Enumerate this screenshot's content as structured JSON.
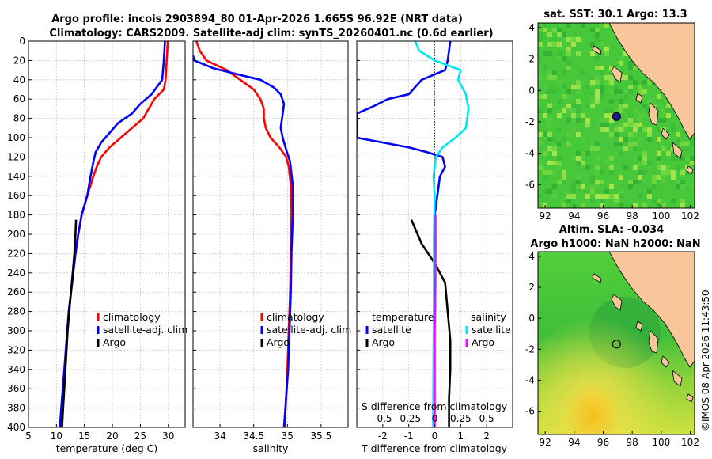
{
  "title_line1": "Argo profile: incois 2903894_80 01-Apr-2026 1.665S 96.92E (NRT data)",
  "title_line2": "Climatology: CARS2009. Satellite-adj clim: synTS_20260401.nc (0.6d earlier)",
  "watermark": "©IMOS 08-Apr-2026 11:43:50",
  "colors": {
    "climatology": "#ff0000",
    "satellite": "#0000ff",
    "argo": "#000000",
    "sal_sat": "#00e5ee",
    "sal_argo": "#ff00ff",
    "land": "#f9c59b"
  },
  "chart_data": [
    {
      "type": "line",
      "id": "temperature",
      "xlabel": "temperature (deg C)",
      "xlim": [
        5,
        33
      ],
      "ylim": [
        400,
        0
      ],
      "xticks": [
        5,
        10,
        15,
        20,
        25,
        30
      ],
      "yticks": [
        0,
        20,
        40,
        60,
        80,
        100,
        120,
        140,
        160,
        180,
        200,
        220,
        240,
        260,
        280,
        300,
        320,
        340,
        360,
        380,
        400
      ],
      "grid": true,
      "legend": [
        "climatology",
        "satellite-adj. clim",
        "Argo"
      ],
      "series": [
        {
          "name": "climatology",
          "color": "#ff0000",
          "points": [
            [
              29.9,
              0
            ],
            [
              29.7,
              20
            ],
            [
              29.5,
              40
            ],
            [
              29.2,
              50
            ],
            [
              27.5,
              60
            ],
            [
              26.5,
              70
            ],
            [
              25.5,
              80
            ],
            [
              23.5,
              90
            ],
            [
              21.5,
              100
            ],
            [
              19.5,
              110
            ],
            [
              18.0,
              120
            ],
            [
              17.2,
              130
            ],
            [
              16.6,
              140
            ],
            [
              15.5,
              160
            ],
            [
              14.5,
              180
            ],
            [
              13.9,
              200
            ],
            [
              13.4,
              220
            ],
            [
              12.8,
              250
            ],
            [
              12.2,
              280
            ],
            [
              11.8,
              310
            ],
            [
              11.5,
              340
            ],
            [
              11.2,
              370
            ],
            [
              11.0,
              400
            ]
          ]
        },
        {
          "name": "satellite-adj. clim",
          "color": "#0000ff",
          "points": [
            [
              29.4,
              0
            ],
            [
              29.2,
              20
            ],
            [
              28.9,
              40
            ],
            [
              27.0,
              55
            ],
            [
              25.0,
              65
            ],
            [
              23.5,
              75
            ],
            [
              21.0,
              85
            ],
            [
              19.5,
              95
            ],
            [
              18.0,
              105
            ],
            [
              17.0,
              115
            ],
            [
              16.6,
              125
            ],
            [
              16.1,
              140
            ],
            [
              15.5,
              160
            ],
            [
              14.5,
              180
            ],
            [
              13.9,
              200
            ],
            [
              13.4,
              220
            ],
            [
              12.8,
              250
            ],
            [
              12.2,
              280
            ],
            [
              11.8,
              310
            ],
            [
              11.4,
              340
            ],
            [
              11.0,
              370
            ],
            [
              10.6,
              400
            ]
          ]
        },
        {
          "name": "Argo",
          "color": "#000000",
          "points": [
            [
              13.5,
              185
            ],
            [
              13.4,
              200
            ],
            [
              13.2,
              220
            ],
            [
              12.9,
              240
            ],
            [
              12.6,
              260
            ],
            [
              12.3,
              280
            ],
            [
              12.0,
              300
            ],
            [
              11.8,
              320
            ],
            [
              11.6,
              340
            ],
            [
              11.4,
              360
            ],
            [
              11.2,
              380
            ],
            [
              11.0,
              400
            ]
          ]
        }
      ]
    },
    {
      "type": "line",
      "id": "salinity",
      "xlabel": "salinity",
      "xlim": [
        33.6,
        35.9
      ],
      "ylim": [
        400,
        0
      ],
      "xticks": [
        34,
        34.5,
        35,
        35.5
      ],
      "grid": true,
      "legend": [
        "climatology",
        "satellite-adj. clim",
        "Argo"
      ],
      "series": [
        {
          "name": "climatology",
          "color": "#ff0000",
          "points": [
            [
              33.65,
              0
            ],
            [
              33.7,
              10
            ],
            [
              33.8,
              20
            ],
            [
              34.1,
              30
            ],
            [
              34.3,
              40
            ],
            [
              34.5,
              50
            ],
            [
              34.6,
              60
            ],
            [
              34.65,
              70
            ],
            [
              34.65,
              80
            ],
            [
              34.68,
              90
            ],
            [
              34.75,
              100
            ],
            [
              34.88,
              110
            ],
            [
              34.98,
              120
            ],
            [
              35.02,
              130
            ],
            [
              35.05,
              150
            ],
            [
              35.06,
              180
            ],
            [
              35.05,
              220
            ],
            [
              35.04,
              260
            ],
            [
              35.02,
              300
            ],
            [
              35.0,
              340
            ],
            [
              34.98,
              370
            ],
            [
              34.96,
              400
            ]
          ]
        },
        {
          "name": "satellite-adj. clim",
          "color": "#0000ff",
          "points": [
            [
              33.6,
              15
            ],
            [
              33.62,
              20
            ],
            [
              33.9,
              28
            ],
            [
              34.3,
              35
            ],
            [
              34.6,
              40
            ],
            [
              34.8,
              48
            ],
            [
              34.9,
              55
            ],
            [
              34.95,
              65
            ],
            [
              34.92,
              80
            ],
            [
              34.9,
              90
            ],
            [
              34.93,
              100
            ],
            [
              34.98,
              112
            ],
            [
              35.04,
              125
            ],
            [
              35.08,
              150
            ],
            [
              35.08,
              180
            ],
            [
              35.06,
              220
            ],
            [
              35.05,
              260
            ],
            [
              35.03,
              300
            ],
            [
              35.01,
              340
            ],
            [
              34.98,
              370
            ],
            [
              34.95,
              400
            ]
          ]
        },
        {
          "name": "Argo",
          "color": "#000000",
          "points": []
        }
      ]
    },
    {
      "type": "line",
      "id": "difference",
      "xlabel": "T difference from climatology",
      "xlabel_top": "S difference from climatology",
      "xlim": [
        -3,
        3
      ],
      "ylim": [
        400,
        0
      ],
      "xticks": [
        -2,
        -1,
        0,
        1,
        2
      ],
      "s_ticks": [
        "-0.5",
        "-0.25",
        "0",
        "0.25",
        "0.5"
      ],
      "s_tick_values": [
        -0.5,
        -0.25,
        0,
        0.25,
        0.5
      ],
      "s_scale": 0.25,
      "grid": true,
      "legend_left_title": "temperature",
      "legend_right_title": "salinity",
      "legend_left": [
        "satellite",
        "Argo"
      ],
      "legend_right": [
        "satellite",
        "Argo"
      ],
      "series": [
        {
          "name": "T satellite",
          "color": "#0000ff",
          "points": [
            [
              0.6,
              0
            ],
            [
              0.5,
              20
            ],
            [
              0.4,
              30
            ],
            [
              -0.5,
              40
            ],
            [
              -1.0,
              55
            ],
            [
              -1.8,
              60
            ],
            [
              -2.4,
              68
            ],
            [
              -3.0,
              75
            ],
            [
              -3.0,
              100
            ],
            [
              -2.2,
              104
            ],
            [
              -1.0,
              110
            ],
            [
              -0.3,
              115
            ],
            [
              0.3,
              120
            ],
            [
              0.4,
              130
            ],
            [
              0.2,
              140
            ],
            [
              0.1,
              160
            ],
            [
              0.0,
              180
            ],
            [
              -0.02,
              260
            ],
            [
              -0.03,
              400
            ]
          ]
        },
        {
          "name": "T Argo",
          "color": "#000000",
          "points": [
            [
              -0.9,
              185
            ],
            [
              -0.5,
              210
            ],
            [
              0.0,
              230
            ],
            [
              0.4,
              250
            ],
            [
              0.5,
              280
            ],
            [
              0.6,
              310
            ],
            [
              0.6,
              340
            ],
            [
              0.55,
              370
            ],
            [
              0.55,
              400
            ]
          ]
        },
        {
          "name": "S satellite",
          "color": "#00e5ee",
          "points": [
            [
              -0.75,
              0
            ],
            [
              -0.6,
              10
            ],
            [
              0.0,
              20
            ],
            [
              1.0,
              30
            ],
            [
              0.9,
              40
            ],
            [
              1.2,
              55
            ],
            [
              1.3,
              70
            ],
            [
              1.2,
              90
            ],
            [
              0.8,
              100
            ],
            [
              0.3,
              110
            ],
            [
              0.05,
              120
            ],
            [
              -0.05,
              140
            ],
            [
              0.0,
              160
            ],
            [
              -0.03,
              200
            ],
            [
              -0.03,
              260
            ],
            [
              -0.05,
              330
            ],
            [
              -0.06,
              400
            ]
          ]
        },
        {
          "name": "S Argo",
          "color": "#ff00ff",
          "points": [
            [
              0.03,
              180
            ],
            [
              0.03,
              220
            ],
            [
              0.02,
              260
            ],
            [
              0.0,
              300
            ],
            [
              0.0,
              340
            ],
            [
              0.0,
              400
            ]
          ]
        }
      ]
    },
    {
      "type": "heatmap",
      "id": "sst_map",
      "title": "sat. SST: 30.1 Argo: 13.3",
      "xlim": [
        91.5,
        102.3
      ],
      "ylim": [
        -7.5,
        4.3
      ],
      "xticks": [
        92,
        94,
        96,
        98,
        100,
        102
      ],
      "yticks": [
        4,
        2,
        0,
        -2,
        -4,
        -6
      ],
      "marker": {
        "lon": 96.92,
        "lat": -1.665,
        "filled": true
      }
    },
    {
      "type": "heatmap",
      "id": "sla_map",
      "title_line1": "Altim. SLA: -0.034",
      "title_line2": "Argo h1000: NaN h2000: NaN",
      "xlim": [
        91.5,
        102.3
      ],
      "ylim": [
        -7.5,
        4.3
      ],
      "xticks": [
        92,
        94,
        96,
        98,
        100,
        102
      ],
      "yticks": [
        4,
        2,
        0,
        -2,
        -4,
        -6
      ],
      "marker": {
        "lon": 96.92,
        "lat": -1.665,
        "filled": false
      }
    }
  ]
}
